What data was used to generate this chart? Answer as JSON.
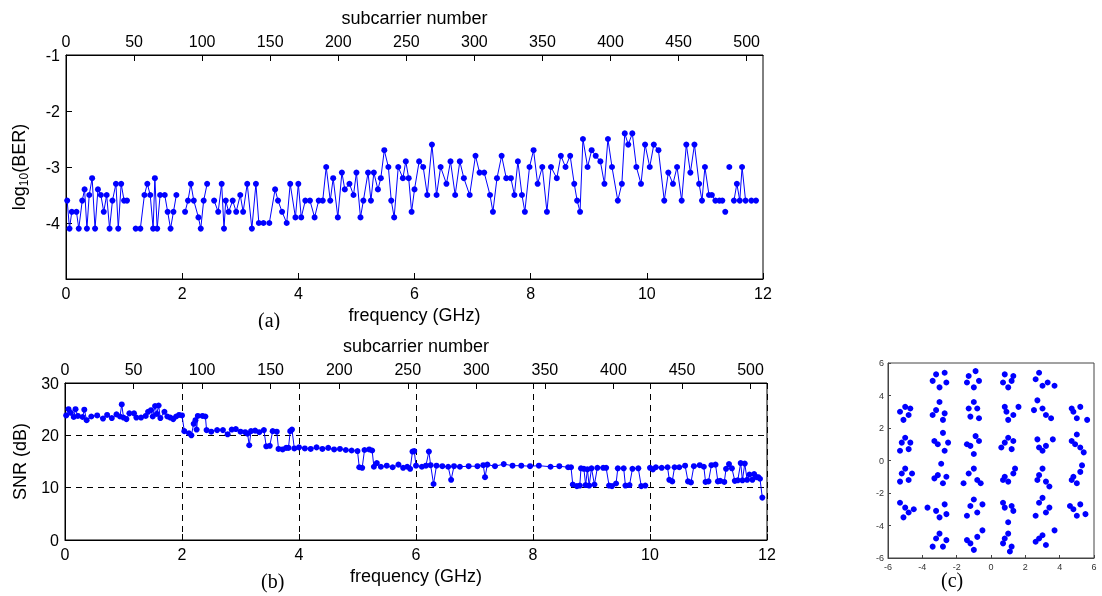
{
  "chart_data": [
    {
      "type": "line",
      "xlabel": "frequency (GHz)",
      "x2label": "subcarrier number",
      "ylabel": "log$_{10}$(BER)",
      "color": "#0000ff",
      "marker": "circle",
      "line_style": "solid",
      "grid": false,
      "xlim": [
        0,
        12
      ],
      "xticks": [
        0,
        2,
        4,
        6,
        8,
        10,
        12
      ],
      "x2lim": [
        0,
        512
      ],
      "x2ticks": [
        0,
        50,
        100,
        150,
        200,
        250,
        300,
        350,
        400,
        450,
        500
      ],
      "ylim": [
        -5,
        -1
      ],
      "yticks": [
        -4,
        -3,
        -2,
        -1
      ],
      "x": [
        0.02,
        0.06,
        0.1,
        0.18,
        0.22,
        0.28,
        0.32,
        0.36,
        0.4,
        0.45,
        0.5,
        0.55,
        0.6,
        0.65,
        0.7,
        0.75,
        0.8,
        0.86,
        0.9,
        0.95,
        1.0,
        1.05,
        1.1,
        1.2,
        1.28,
        1.35,
        1.4,
        1.45,
        1.5,
        1.53,
        1.57,
        1.62,
        1.7,
        1.75,
        1.8,
        1.85,
        1.9,
        1.95,
        2.05,
        2.1,
        2.15,
        2.2,
        2.28,
        2.32,
        2.37,
        2.43,
        2.48,
        2.55,
        2.62,
        2.68,
        2.72,
        2.75,
        2.8,
        2.87,
        2.93,
        3.0,
        3.05,
        3.12,
        3.2,
        3.27,
        3.32,
        3.4,
        3.45,
        3.5,
        3.6,
        3.65,
        3.72,
        3.8,
        3.86,
        3.95,
        4.0,
        4.05,
        4.12,
        4.2,
        4.28,
        4.35,
        4.42,
        4.48,
        4.55,
        4.6,
        4.68,
        4.75,
        4.8,
        4.88,
        4.95,
        5.0,
        5.07,
        5.12,
        5.2,
        5.25,
        5.3,
        5.37,
        5.42,
        5.48,
        5.55,
        5.6,
        5.65,
        5.72,
        5.8,
        5.85,
        5.9,
        5.95,
        6.0,
        6.08,
        6.15,
        6.22,
        6.3,
        6.38,
        6.45,
        6.55,
        6.62,
        6.7,
        6.78,
        6.85,
        6.95,
        7.05,
        7.12,
        7.2,
        7.3,
        7.35,
        7.42,
        7.5,
        7.58,
        7.66,
        7.72,
        7.78,
        7.85,
        7.9,
        7.98,
        8.05,
        8.12,
        8.2,
        8.28,
        8.35,
        8.45,
        8.52,
        8.6,
        8.68,
        8.75,
        8.8,
        8.85,
        8.9,
        8.98,
        9.05,
        9.12,
        9.2,
        9.27,
        9.33,
        9.4,
        9.5,
        9.57,
        9.62,
        9.68,
        9.75,
        9.82,
        9.9,
        9.97,
        10.05,
        10.12,
        10.2,
        10.3,
        10.37,
        10.45,
        10.52,
        10.6,
        10.68,
        10.75,
        10.82,
        10.9,
        10.95,
        11.0,
        11.07,
        11.12,
        11.18,
        11.25,
        11.3,
        11.33,
        11.35,
        11.37,
        11.42,
        11.45,
        11.5,
        11.55,
        11.6,
        11.64,
        11.7,
        11.74,
        11.8,
        11.88
      ],
      "values": [
        -3.6,
        -4.1,
        -3.8,
        -3.8,
        -4.1,
        -3.6,
        -3.4,
        -4.1,
        -3.5,
        -3.2,
        -4.1,
        -3.4,
        -3.5,
        -3.8,
        -3.5,
        -4.1,
        -3.6,
        -3.3,
        -4.1,
        -3.3,
        -3.6,
        -3.6,
        null,
        -4.1,
        -4.1,
        -3.5,
        -3.3,
        -3.5,
        -4.1,
        -3.2,
        -4.1,
        -3.5,
        -3.5,
        -3.8,
        -4.1,
        -3.8,
        -3.5,
        null,
        -3.8,
        -3.6,
        -3.3,
        -3.6,
        -3.9,
        -4.1,
        -3.6,
        -3.3,
        null,
        -3.6,
        -3.8,
        -3.3,
        -4.1,
        -3.6,
        -3.8,
        -3.6,
        -3.8,
        -3.5,
        -3.8,
        -3.3,
        -4.1,
        -3.3,
        -4.0,
        -4.0,
        null,
        -4.0,
        -3.4,
        -3.6,
        -3.8,
        -4.0,
        -3.3,
        -3.9,
        -3.3,
        -3.9,
        -3.6,
        -3.6,
        -3.9,
        -3.6,
        -3.6,
        -3.0,
        -3.6,
        -3.2,
        -3.9,
        -3.1,
        -3.4,
        -3.3,
        -3.5,
        -3.1,
        -3.9,
        -3.6,
        -3.1,
        -3.6,
        -3.1,
        -3.4,
        -3.2,
        -2.7,
        -3.0,
        -3.6,
        -3.9,
        -3.0,
        -3.2,
        -2.9,
        -3.2,
        -3.8,
        -3.4,
        -2.9,
        -3.0,
        -3.5,
        -2.6,
        -3.5,
        -3.0,
        -3.3,
        -2.9,
        -3.5,
        -2.9,
        -3.2,
        -3.5,
        -2.8,
        -3.1,
        -3.1,
        -3.5,
        -3.8,
        -3.2,
        -2.8,
        -3.2,
        -3.2,
        -3.5,
        -2.9,
        -3.5,
        -3.8,
        -3.0,
        -2.7,
        -3.3,
        -3.0,
        -3.8,
        -3.0,
        -3.2,
        -2.8,
        -3.0,
        -2.8,
        -3.3,
        -3.6,
        -3.8,
        -2.5,
        -3.0,
        -2.7,
        -2.8,
        -2.9,
        -3.3,
        -2.5,
        -3.0,
        -3.6,
        -3.3,
        -2.4,
        -2.6,
        -2.4,
        -3.0,
        -3.3,
        -2.6,
        -3.0,
        -2.6,
        -2.7,
        -3.6,
        -3.1,
        -3.3,
        -3.0,
        -3.6,
        -2.6,
        -3.1,
        -2.6,
        -3.3,
        -3.6,
        -3.0,
        -3.5,
        -3.5,
        -3.6,
        -3.6,
        -3.6,
        null,
        -3.8,
        null,
        -3.0,
        null,
        -3.6,
        -3.3,
        -3.6,
        -3.0,
        -3.6,
        null,
        -3.6,
        -3.6
      ],
      "annotations": [
        "(a)"
      ]
    },
    {
      "type": "line",
      "xlabel": "frequency (GHz)",
      "x2label": "subcarrier number",
      "ylabel": "SNR (dB)",
      "color": "#0000ff",
      "marker": "circle",
      "line_style": "solid",
      "grid": true,
      "xlim": [
        0,
        12
      ],
      "xticks": [
        0,
        2,
        4,
        6,
        8,
        10,
        12
      ],
      "x2lim": [
        0,
        512
      ],
      "x2ticks": [
        0,
        50,
        100,
        150,
        200,
        250,
        300,
        350,
        400,
        450,
        500
      ],
      "ylim": [
        0,
        30
      ],
      "yticks": [
        0,
        10,
        20,
        30
      ],
      "x": [
        0.02,
        0.06,
        0.1,
        0.15,
        0.18,
        0.22,
        0.3,
        0.33,
        0.37,
        0.45,
        0.55,
        0.65,
        0.72,
        0.8,
        0.88,
        0.94,
        0.97,
        1.0,
        1.05,
        1.1,
        1.18,
        1.22,
        1.3,
        1.38,
        1.42,
        1.47,
        1.5,
        1.54,
        1.57,
        1.6,
        1.63,
        1.7,
        1.75,
        1.8,
        1.85,
        1.9,
        1.95,
        2.0,
        2.04,
        2.12,
        2.16,
        2.2,
        2.23,
        2.25,
        2.27,
        2.35,
        2.4,
        2.42,
        2.5,
        2.6,
        2.7,
        2.78,
        2.85,
        2.92,
        3.0,
        3.08,
        3.12,
        3.15,
        3.18,
        3.25,
        3.32,
        3.4,
        3.44,
        3.5,
        3.55,
        3.62,
        3.65,
        3.72,
        3.78,
        3.82,
        3.85,
        3.88,
        3.92,
        4.0,
        4.1,
        4.2,
        4.3,
        4.4,
        4.5,
        4.6,
        4.7,
        4.8,
        4.9,
        5.0,
        5.03,
        5.08,
        5.12,
        5.2,
        5.25,
        5.28,
        5.33,
        5.4,
        5.5,
        5.6,
        5.7,
        5.78,
        5.85,
        5.9,
        5.94,
        5.97,
        6.0,
        6.1,
        6.17,
        6.22,
        6.25,
        6.3,
        6.35,
        6.45,
        6.55,
        6.6,
        6.65,
        6.75,
        6.9,
        7.05,
        7.15,
        7.18,
        7.22,
        7.35,
        7.5,
        7.65,
        7.8,
        7.95,
        8.1,
        8.3,
        8.45,
        8.6,
        8.65,
        8.68,
        8.75,
        8.8,
        8.82,
        8.87,
        8.9,
        8.93,
        8.96,
        9.0,
        9.05,
        9.1,
        9.2,
        9.25,
        9.3,
        9.35,
        9.42,
        9.45,
        9.55,
        9.58,
        9.65,
        9.7,
        9.8,
        9.85,
        9.92,
        9.95,
        10.0,
        10.05,
        10.1,
        10.2,
        10.3,
        10.33,
        10.38,
        10.42,
        10.5,
        10.6,
        10.65,
        10.7,
        10.75,
        10.85,
        10.92,
        10.95,
        11.0,
        11.05,
        11.12,
        11.16,
        11.2,
        11.27,
        11.3,
        11.35,
        11.4,
        11.45,
        11.5,
        11.55,
        11.58,
        11.62,
        11.66,
        11.7,
        11.75,
        11.78,
        11.82,
        11.85,
        11.88,
        11.92
      ],
      "values": [
        23.8,
        25.0,
        24.3,
        23.5,
        25.0,
        23.7,
        23.5,
        24.9,
        22.9,
        23.6,
        23.8,
        23.2,
        23.9,
        23.3,
        24.0,
        23.6,
        25.9,
        23.4,
        23.1,
        24.2,
        24.2,
        23.4,
        23.4,
        23.7,
        24.5,
        24.8,
        23.6,
        25.6,
        24.1,
        25.7,
        23.3,
        24.5,
        23.6,
        23.4,
        23.1,
        23.6,
        23.9,
        23.8,
        20.8,
        20.4,
        20.0,
        22.2,
        22.9,
        21.1,
        23.7,
        23.7,
        23.6,
        21.0,
        20.7,
        21.0,
        21.0,
        20.2,
        21.1,
        21.2,
        20.7,
        20.6,
        20.3,
        18.1,
        20.8,
        20.9,
        20.6,
        21.0,
        17.9,
        18.0,
        20.8,
        20.7,
        17.4,
        17.3,
        17.6,
        17.6,
        20.8,
        21.1,
        17.5,
        17.7,
        17.5,
        17.4,
        17.7,
        17.4,
        17.6,
        17.3,
        17.4,
        17.2,
        17.1,
        17.0,
        13.9,
        13.8,
        17.2,
        17.3,
        17.1,
        14.0,
        14.7,
        14.0,
        14.2,
        13.9,
        14.4,
        13.8,
        14.0,
        13.6,
        16.9,
        17.0,
        14.2,
        14.0,
        14.2,
        16.9,
        14.3,
        10.7,
        14.2,
        14.1,
        14.0,
        11.5,
        14.1,
        14.0,
        14.1,
        14.1,
        14.3,
        12.0,
        14.4,
        14.1,
        14.5,
        14.2,
        14.2,
        14.1,
        14.2,
        14.0,
        14.1,
        13.9,
        13.9,
        10.6,
        10.3,
        10.4,
        13.7,
        13.6,
        10.5,
        13.5,
        10.4,
        13.7,
        10.6,
        13.8,
        13.8,
        13.8,
        10.4,
        10.3,
        10.8,
        13.7,
        13.7,
        10.4,
        10.5,
        13.6,
        13.7,
        10.3,
        10.4,
        null,
        13.8,
        13.5,
        13.9,
        13.8,
        13.9,
        11.5,
        11.2,
        13.9,
        13.9,
        14.2,
        11.2,
        11.0,
        14.1,
        14.3,
        14.0,
        11.1,
        11.2,
        14.3,
        14.4,
        11.2,
        11.3,
        11.1,
        13.6,
        14.5,
        13.7,
        11.3,
        11.4,
        14.7,
        11.4,
        14.6,
        11.5,
        12.5,
        11.5,
        12.6,
        12.0,
        12.0,
        11.7,
        8.1
      ],
      "annotations": [
        "(b)"
      ]
    },
    {
      "type": "scatter",
      "color": "#0000ff",
      "marker": "circle",
      "grid": false,
      "xlim": [
        -6,
        6
      ],
      "xticks": [
        -6,
        -4,
        -2,
        0,
        2,
        4,
        6
      ],
      "ylim": [
        -6,
        6
      ],
      "yticks": [
        -6,
        -4,
        -2,
        0,
        2,
        4,
        6
      ],
      "x": [
        -3.4,
        -2.7,
        -3.0,
        -2.6,
        -3.2,
        -1.3,
        -0.7,
        -1.0,
        -0.9,
        -1.4,
        0.7,
        1.3,
        1.0,
        1.2,
        0.8,
        2.8,
        3.3,
        3.0,
        3.7,
        2.6,
        -5.3,
        -4.8,
        -5.0,
        -4.7,
        -5.1,
        -3.2,
        -2.7,
        -3.0,
        -2.8,
        -3.4,
        -1.2,
        -0.8,
        -1.0,
        -0.7,
        -1.3,
        0.8,
        1.3,
        1.0,
        1.6,
        0.9,
        2.7,
        3.2,
        3.0,
        3.5,
        2.5,
        4.8,
        5.2,
        5.0,
        5.6,
        4.7,
        -5.2,
        -4.8,
        -5.0,
        -4.7,
        -5.3,
        -3.1,
        -2.8,
        -2.7,
        -3.3,
        -2.5,
        -1.2,
        -0.7,
        -1.0,
        -0.9,
        -1.4,
        0.8,
        1.2,
        1.0,
        0.6,
        1.3,
        2.7,
        3.2,
        3.0,
        3.6,
        2.8,
        4.7,
        5.2,
        5.0,
        5.4,
        4.9,
        -5.2,
        -4.8,
        -5.0,
        -4.6,
        -5.3,
        -3.1,
        -2.8,
        -2.9,
        -3.3,
        -2.6,
        -1.3,
        -0.8,
        -1.0,
        -0.6,
        -1.6,
        0.8,
        1.3,
        1.0,
        1.4,
        0.7,
        2.8,
        3.2,
        3.0,
        3.4,
        2.7,
        4.8,
        5.2,
        5.0,
        5.3,
        4.7,
        -5.3,
        -4.8,
        -5.0,
        -4.5,
        -5.1,
        -3.2,
        -2.7,
        -3.0,
        -3.7,
        -2.6,
        -1.2,
        -0.8,
        -1.0,
        -0.5,
        -1.4,
        0.8,
        1.3,
        1.0,
        0.7,
        1.2,
        2.8,
        3.2,
        3.0,
        3.4,
        2.6,
        4.8,
        5.2,
        5.0,
        5.5,
        4.6,
        -3.2,
        -2.8,
        -3.0,
        -2.6,
        -3.4,
        -1.2,
        -0.8,
        -1.0,
        -0.5,
        -1.4,
        0.8,
        1.2,
        1.0,
        1.1,
        0.7,
        2.8,
        3.2,
        3.0,
        3.7,
        2.6
      ],
      "values": [
        4.9,
        5.4,
        4.5,
        4.8,
        5.3,
        5.2,
        4.9,
        4.5,
        5.5,
        4.8,
        4.8,
        5.2,
        4.5,
        4.9,
        5.3,
        5.4,
        4.8,
        4.6,
        4.6,
        5.0,
        3.0,
        2.8,
        3.3,
        3.2,
        2.5,
        3.1,
        2.9,
        3.6,
        2.5,
        2.8,
        2.7,
        3.2,
        3.6,
        2.6,
        3.2,
        3.3,
        2.8,
        2.5,
        3.3,
        3.0,
        3.7,
        2.8,
        3.2,
        2.6,
        3.1,
        3.0,
        3.3,
        2.6,
        2.5,
        3.2,
        1.1,
        0.7,
        1.4,
        1.1,
        0.6,
        1.0,
        1.7,
        0.6,
        1.2,
        1.1,
        0.9,
        1.2,
        0.4,
        1.5,
        1.0,
        1.1,
        0.7,
        1.4,
        0.8,
        1.2,
        1.3,
        0.9,
        0.6,
        1.3,
        0.8,
        1.2,
        0.8,
        1.6,
        0.5,
        1.0,
        -0.8,
        -1.2,
        -0.5,
        -0.8,
        -1.3,
        -0.9,
        -1.4,
        -0.2,
        -1.1,
        -1.0,
        -0.8,
        -1.2,
        -0.5,
        -1.4,
        -1.4,
        -1.0,
        -0.8,
        -1.3,
        -0.5,
        -1.2,
        -0.9,
        -1.3,
        -0.5,
        -1.6,
        -1.2,
        -1.0,
        -0.7,
        -1.4,
        -0.3,
        -1.2,
        -2.6,
        -3.2,
        -2.9,
        -3.0,
        -3.5,
        -3.1,
        -2.7,
        -3.5,
        -2.9,
        -3.3,
        -2.8,
        -3.2,
        -2.4,
        -2.7,
        -3.4,
        -2.9,
        -3.1,
        -3.8,
        -2.6,
        -2.8,
        -2.6,
        -3.2,
        -2.3,
        -2.9,
        -3.4,
        -3.0,
        -2.7,
        -3.4,
        -3.3,
        -2.8,
        -4.8,
        -5.3,
        -4.5,
        -4.9,
        -5.3,
        -5.1,
        -4.7,
        -5.5,
        -4.3,
        -4.9,
        -4.8,
        -5.3,
        -4.5,
        -5.6,
        -5.1,
        -4.8,
        -5.2,
        -4.6,
        -4.3,
        -5.0
      ],
      "annotations": [
        "(c)"
      ]
    }
  ]
}
